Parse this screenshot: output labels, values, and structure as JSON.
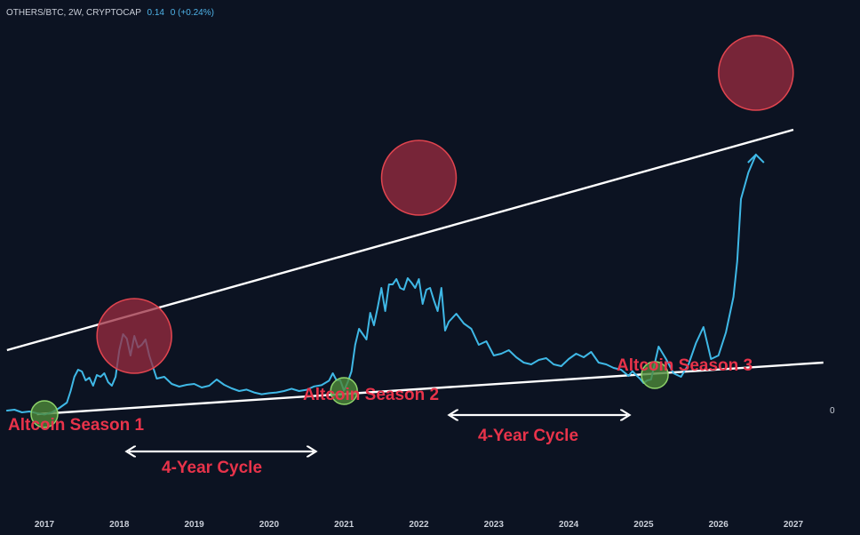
{
  "header": {
    "symbol": "OTHERS/BTC, 2W, CRYPTOCAP",
    "value_a": "0.14",
    "value_b": "0",
    "change": "(+0.24%)"
  },
  "right_axis_label": "0",
  "colors": {
    "background": "#0c1322",
    "line": "#3fb8e6",
    "trendline": "#ffffff",
    "top_circle_fill": "#9b2c40",
    "top_circle_stroke": "#e2454f",
    "bottom_circle_fill": "#4d8a3a",
    "bottom_circle_stroke": "#8fd46a",
    "label": "#e8334a"
  },
  "annotations": {
    "seasons": [
      "Altcoin Season 1",
      "Altcoin Season 2",
      "Altcoin Season 3"
    ],
    "cycles": [
      "4-Year Cycle",
      "4-Year Cycle"
    ]
  },
  "chart_data": {
    "type": "line",
    "title": "",
    "xlabel": "",
    "ylabel": "",
    "x_ticks": [
      "2017",
      "2018",
      "2019",
      "2020",
      "2021",
      "2022",
      "2023",
      "2024",
      "2025",
      "2026",
      "2027"
    ],
    "x": [
      2016.5,
      2016.6,
      2016.7,
      2016.8,
      2016.9,
      2017.0,
      2017.1,
      2017.2,
      2017.3,
      2017.35,
      2017.4,
      2017.45,
      2017.5,
      2017.55,
      2017.6,
      2017.65,
      2017.7,
      2017.75,
      2017.8,
      2017.85,
      2017.9,
      2017.95,
      2018.0,
      2018.05,
      2018.1,
      2018.15,
      2018.2,
      2018.25,
      2018.3,
      2018.35,
      2018.4,
      2018.5,
      2018.6,
      2018.7,
      2018.8,
      2018.9,
      2019.0,
      2019.1,
      2019.2,
      2019.3,
      2019.4,
      2019.5,
      2019.6,
      2019.7,
      2019.8,
      2019.9,
      2020.0,
      2020.1,
      2020.2,
      2020.3,
      2020.4,
      2020.5,
      2020.6,
      2020.7,
      2020.8,
      2020.85,
      2020.9,
      2020.95,
      2021.0,
      2021.05,
      2021.1,
      2021.15,
      2021.2,
      2021.25,
      2021.3,
      2021.35,
      2021.4,
      2021.45,
      2021.5,
      2021.55,
      2021.6,
      2021.65,
      2021.7,
      2021.75,
      2021.8,
      2021.85,
      2021.9,
      2021.95,
      2022.0,
      2022.05,
      2022.1,
      2022.15,
      2022.2,
      2022.25,
      2022.3,
      2022.35,
      2022.4,
      2022.5,
      2022.6,
      2022.7,
      2022.8,
      2022.9,
      2023.0,
      2023.1,
      2023.2,
      2023.3,
      2023.4,
      2023.5,
      2023.6,
      2023.7,
      2023.8,
      2023.9,
      2024.0,
      2024.1,
      2024.2,
      2024.3,
      2024.4,
      2024.5,
      2024.6,
      2024.7,
      2024.8,
      2024.85,
      2024.9,
      2024.95,
      2025.0,
      2025.05,
      2025.1,
      2025.2,
      2025.3,
      2025.4,
      2025.5,
      2025.6,
      2025.7,
      2025.8,
      2025.9,
      2026.0,
      2026.1,
      2026.2,
      2026.25,
      2026.3,
      2026.4,
      2026.5
    ],
    "series": [
      {
        "values": [
          0.16,
          0.165,
          0.15,
          0.155,
          0.145,
          0.138,
          0.15,
          0.175,
          0.205,
          0.27,
          0.35,
          0.39,
          0.38,
          0.33,
          0.345,
          0.3,
          0.36,
          0.35,
          0.37,
          0.32,
          0.3,
          0.35,
          0.5,
          0.59,
          0.565,
          0.47,
          0.58,
          0.515,
          0.53,
          0.56,
          0.47,
          0.34,
          0.35,
          0.31,
          0.295,
          0.305,
          0.31,
          0.29,
          0.3,
          0.335,
          0.305,
          0.285,
          0.27,
          0.278,
          0.262,
          0.252,
          0.258,
          0.262,
          0.27,
          0.283,
          0.27,
          0.277,
          0.296,
          0.303,
          0.328,
          0.37,
          0.33,
          0.33,
          0.272,
          0.32,
          0.38,
          0.53,
          0.62,
          0.59,
          0.56,
          0.71,
          0.64,
          0.74,
          0.85,
          0.72,
          0.87,
          0.87,
          0.9,
          0.85,
          0.84,
          0.905,
          0.88,
          0.85,
          0.9,
          0.76,
          0.84,
          0.85,
          0.78,
          0.72,
          0.85,
          0.61,
          0.66,
          0.705,
          0.65,
          0.62,
          0.53,
          0.55,
          0.47,
          0.48,
          0.5,
          0.46,
          0.43,
          0.42,
          0.445,
          0.455,
          0.42,
          0.41,
          0.45,
          0.48,
          0.46,
          0.49,
          0.43,
          0.42,
          0.4,
          0.39,
          0.355,
          0.382,
          0.36,
          0.34,
          0.315,
          0.33,
          0.335,
          0.52,
          0.45,
          0.37,
          0.35,
          0.42,
          0.54,
          0.63,
          0.45,
          0.47,
          0.6,
          0.8,
          1.0,
          1.35,
          1.5,
          1.6
        ]
      }
    ],
    "xlim": [
      2016.5,
      2027.2
    ],
    "ylim": [
      0.0,
      1.93
    ],
    "trendlines": [
      {
        "x": [
          2016.5,
          2027.0
        ],
        "y": [
          0.5,
          1.74
        ]
      },
      {
        "x": [
          2016.9,
          2027.4
        ],
        "y": [
          0.14,
          0.43
        ]
      }
    ],
    "grid": false
  }
}
